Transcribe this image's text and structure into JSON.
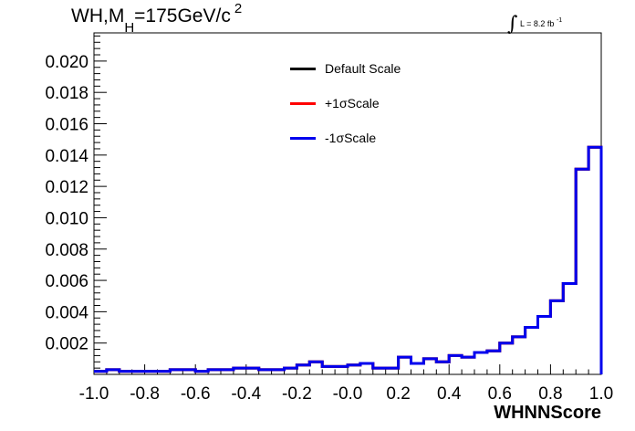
{
  "title": {
    "main": "WH,M",
    "sub": "H",
    "rest": "=175GeV/c",
    "sup": "2"
  },
  "luminosity": {
    "integral": "∫",
    "text": "L = 8.2 fb",
    "sup": "-1"
  },
  "chart_data": {
    "type": "line",
    "xlabel": "WHNNScore",
    "ylabel": "",
    "xlim": [
      -1.0,
      1.0
    ],
    "ylim": [
      0,
      0.0218
    ],
    "x_ticks": [
      "-1.0",
      "-0.8",
      "-0.6",
      "-0.4",
      "-0.2",
      "-0.0",
      "0.2",
      "0.4",
      "0.6",
      "0.8",
      "1.0"
    ],
    "y_ticks": [
      "0.002",
      "0.004",
      "0.006",
      "0.008",
      "0.010",
      "0.012",
      "0.014",
      "0.016",
      "0.018",
      "0.020"
    ],
    "bin_edges_start": -1.0,
    "bin_width": 0.05,
    "legend_placement": "top-center",
    "grid": false,
    "series": [
      {
        "name": "Default Scale",
        "color": "#000000",
        "values": [
          0.0002,
          0.0003,
          0.0002,
          0.0002,
          0.0002,
          0.0002,
          0.0003,
          0.0003,
          0.0002,
          0.0003,
          0.0003,
          0.0004,
          0.0004,
          0.0003,
          0.0003,
          0.0004,
          0.0006,
          0.0008,
          0.0005,
          0.0005,
          0.0006,
          0.0007,
          0.0004,
          0.0004,
          0.0011,
          0.0007,
          0.001,
          0.0008,
          0.0012,
          0.0011,
          0.0014,
          0.0015,
          0.002,
          0.0024,
          0.003,
          0.0037,
          0.0047,
          0.0058,
          0.0131,
          0.0145
        ]
      },
      {
        "name": "+1σScale",
        "color": "#ff0000",
        "values": [
          0.0002,
          0.0003,
          0.0002,
          0.0002,
          0.0002,
          0.0002,
          0.0003,
          0.0003,
          0.0002,
          0.0003,
          0.0003,
          0.0004,
          0.0004,
          0.0003,
          0.0003,
          0.0004,
          0.0006,
          0.0008,
          0.0005,
          0.0005,
          0.0006,
          0.0007,
          0.0004,
          0.0004,
          0.0011,
          0.0007,
          0.001,
          0.0008,
          0.0012,
          0.0011,
          0.0014,
          0.0015,
          0.002,
          0.0024,
          0.003,
          0.0037,
          0.0047,
          0.0058,
          0.0131,
          0.0145
        ]
      },
      {
        "name": "-1σScale",
        "color": "#0000ee",
        "values": [
          0.0002,
          0.0003,
          0.0002,
          0.0002,
          0.0002,
          0.0002,
          0.0003,
          0.0003,
          0.0002,
          0.0003,
          0.0003,
          0.0004,
          0.0004,
          0.0003,
          0.0003,
          0.0004,
          0.0006,
          0.0008,
          0.0005,
          0.0005,
          0.0006,
          0.0007,
          0.0004,
          0.0004,
          0.0011,
          0.0007,
          0.001,
          0.0008,
          0.0012,
          0.0011,
          0.0014,
          0.0015,
          0.002,
          0.0024,
          0.003,
          0.0037,
          0.0047,
          0.0058,
          0.0131,
          0.0145
        ]
      }
    ]
  }
}
